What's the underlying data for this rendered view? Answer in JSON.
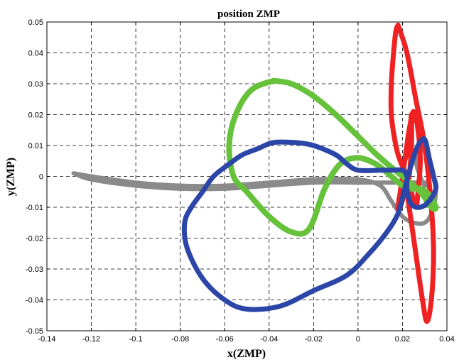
{
  "chart_data": {
    "type": "line",
    "title": "position ZMP",
    "xlabel": "x(ZMP)",
    "ylabel": "y(ZMP)",
    "xlim": [
      -0.14,
      0.04
    ],
    "ylim": [
      -0.05,
      0.05
    ],
    "grid": true,
    "x_ticks": [
      -0.14,
      -0.12,
      -0.1,
      -0.08,
      -0.06,
      -0.04,
      -0.02,
      0,
      0.02,
      0.04
    ],
    "x_tick_labels": [
      "-0.14",
      "-0.12",
      "-0.1",
      "-0.08",
      "-0.06",
      "-0.04",
      "-0.02",
      "0",
      "0.02",
      "0.04"
    ],
    "y_ticks": [
      -0.05,
      -0.04,
      -0.03,
      -0.02,
      -0.01,
      0,
      0.01,
      0.02,
      0.03,
      0.04,
      0.05
    ],
    "y_tick_labels": [
      "-0.05",
      "-0.04",
      "-0.03",
      "-0.02",
      "-0.01",
      "0",
      "0.01",
      "0.02",
      "0.03",
      "0.04",
      "0.05"
    ],
    "series": [
      {
        "color": "#8a8a8a",
        "width": 6,
        "x": [
          -0.128,
          -0.12,
          -0.1,
          -0.08,
          -0.06,
          -0.04,
          -0.02,
          0.0,
          0.01,
          0.015,
          0.02,
          0.025,
          0.03,
          0.033,
          0.035,
          0.033,
          0.03,
          0.027,
          0.026,
          0.028,
          0.03,
          0.032,
          0.031,
          0.025,
          0.02,
          0.017,
          0.014,
          0.01,
          0.0,
          -0.02,
          -0.04,
          -0.06,
          -0.08,
          -0.1,
          -0.12,
          -0.128
        ],
        "y": [
          0.001,
          0.0,
          -0.002,
          -0.003,
          -0.003,
          -0.002,
          -0.001,
          -0.001,
          -0.003,
          -0.008,
          -0.013,
          -0.015,
          -0.015,
          -0.012,
          -0.005,
          0.002,
          0.008,
          0.01,
          0.005,
          0.0,
          -0.003,
          -0.002,
          -0.002,
          -0.002,
          -0.002,
          -0.002,
          -0.002,
          -0.002,
          -0.002,
          -0.002,
          -0.003,
          -0.004,
          -0.004,
          -0.003,
          -0.001,
          0.001
        ]
      },
      {
        "color": "#ee2222",
        "width": 7,
        "x": [
          0.018,
          0.022,
          0.026,
          0.03,
          0.033,
          0.034,
          0.033,
          0.031,
          0.029,
          0.026,
          0.024,
          0.023,
          0.022,
          0.021,
          0.02,
          0.021,
          0.023,
          0.024,
          0.024,
          0.023,
          0.021,
          0.019,
          0.018,
          0.019,
          0.021,
          0.023,
          0.025,
          0.027,
          0.028,
          0.027,
          0.026,
          0.024,
          0.022,
          0.019,
          0.017,
          0.015,
          0.015,
          0.016,
          0.017,
          0.018
        ],
        "y": [
          0.049,
          0.04,
          0.025,
          0.01,
          -0.01,
          -0.025,
          -0.04,
          -0.047,
          -0.04,
          -0.025,
          -0.015,
          -0.01,
          -0.005,
          -0.002,
          0.0,
          0.005,
          0.01,
          0.02,
          0.01,
          0.0,
          -0.005,
          -0.01,
          -0.01,
          -0.005,
          0.005,
          0.015,
          0.021,
          0.015,
          0.005,
          -0.005,
          -0.01,
          -0.005,
          0.0,
          0.005,
          0.01,
          0.02,
          0.03,
          0.04,
          0.047,
          0.049
        ]
      },
      {
        "color": "#66c23a",
        "width": 8,
        "x": [
          -0.038,
          -0.03,
          -0.02,
          -0.01,
          0.0,
          0.01,
          0.02,
          0.028,
          0.033,
          0.035,
          0.032,
          0.028,
          0.024,
          0.02,
          0.015,
          0.008,
          0.0,
          -0.008,
          -0.015,
          -0.022,
          -0.03,
          -0.04,
          -0.05,
          -0.056,
          -0.058,
          -0.055,
          -0.048,
          -0.038
        ],
        "y": [
          0.031,
          0.03,
          0.026,
          0.02,
          0.013,
          0.006,
          0.0,
          -0.005,
          -0.01,
          -0.01,
          -0.006,
          -0.004,
          -0.004,
          -0.003,
          0.0,
          0.004,
          0.006,
          0.004,
          -0.004,
          -0.017,
          -0.018,
          -0.013,
          -0.005,
          0.0,
          0.01,
          0.02,
          0.028,
          0.031
        ]
      },
      {
        "color": "#2c46a8",
        "width": 7,
        "x": [
          -0.028,
          -0.02,
          -0.01,
          -0.005,
          0.0,
          0.01,
          0.015,
          0.02,
          0.022,
          0.022,
          0.024,
          0.028,
          0.032,
          0.035,
          0.034,
          0.032,
          0.03,
          0.027,
          0.024,
          0.021,
          0.018,
          0.013,
          0.005,
          -0.005,
          -0.02,
          -0.035,
          -0.05,
          -0.06,
          -0.07,
          -0.077,
          -0.078,
          -0.075,
          -0.07,
          -0.065,
          -0.058,
          -0.052,
          -0.045,
          -0.038,
          -0.028
        ],
        "y": [
          0.011,
          0.01,
          0.007,
          0.004,
          0.002,
          0.002,
          0.002,
          0.002,
          0.0,
          -0.004,
          -0.009,
          -0.01,
          -0.008,
          -0.004,
          0.0,
          0.006,
          0.012,
          0.01,
          0.004,
          -0.004,
          -0.012,
          -0.018,
          -0.025,
          -0.032,
          -0.037,
          -0.042,
          -0.043,
          -0.04,
          -0.033,
          -0.023,
          -0.015,
          -0.01,
          -0.005,
          0.0,
          0.004,
          0.007,
          0.009,
          0.011,
          0.011
        ]
      }
    ]
  }
}
